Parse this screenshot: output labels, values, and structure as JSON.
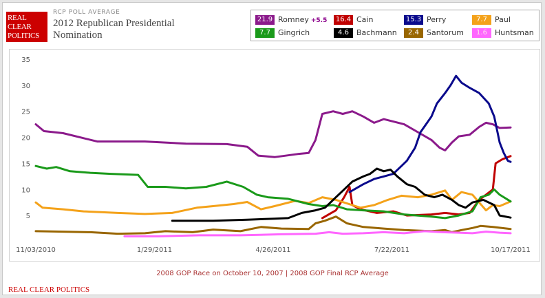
{
  "header": {
    "logo_lines": [
      "REAL",
      "CLEAR",
      "POLITICS"
    ],
    "label": "RCP POLL AVERAGE",
    "title": "2012 Republican Presidential Nomination"
  },
  "footnote": "2008 GOP Race on October 10, 2007 | 2008 GOP Final RCP Average",
  "footer": "REAL CLEAR POLITICS",
  "legend": [
    {
      "name": "Romney",
      "value": "21.9",
      "change": "+5.5",
      "color": "#8b1a8b"
    },
    {
      "name": "Cain",
      "value": "16.4",
      "change": "",
      "color": "#c00000"
    },
    {
      "name": "Perry",
      "value": "15.3",
      "change": "",
      "color": "#0a0a8c"
    },
    {
      "name": "Paul",
      "value": "7.7",
      "change": "",
      "color": "#f4a21a"
    },
    {
      "name": "Gingrich",
      "value": "7.7",
      "change": "",
      "color": "#1a9a1a"
    },
    {
      "name": "Bachmann",
      "value": "4.6",
      "change": "",
      "color": "#000000"
    },
    {
      "name": "Santorum",
      "value": "2.4",
      "change": "",
      "color": "#996600"
    },
    {
      "name": "Huntsman",
      "value": "1.6",
      "change": "",
      "color": "#ff66ff"
    }
  ],
  "chart_data": {
    "type": "line",
    "title": "2012 Republican Presidential Nomination",
    "xlabel": "",
    "ylabel": "",
    "x_tick_labels": [
      "11/03/2010",
      "1/29/2011",
      "4/26/2011",
      "7/22/2011",
      "10/17/2011"
    ],
    "x_domain_days": [
      0,
      348
    ],
    "ylim": [
      0,
      35
    ],
    "y_ticks": [
      5,
      10,
      15,
      20,
      25,
      30,
      35
    ],
    "grid": false,
    "series": [
      {
        "name": "Romney",
        "color": "#8b1a8b",
        "points": [
          [
            0,
            22.5
          ],
          [
            6,
            21.2
          ],
          [
            20,
            20.8
          ],
          [
            45,
            19.2
          ],
          [
            80,
            19.2
          ],
          [
            110,
            18.8
          ],
          [
            140,
            18.7
          ],
          [
            155,
            18.2
          ],
          [
            163,
            16.5
          ],
          [
            175,
            16.2
          ],
          [
            192,
            16.8
          ],
          [
            200,
            17.0
          ],
          [
            205,
            19.5
          ],
          [
            210,
            24.5
          ],
          [
            218,
            25.0
          ],
          [
            225,
            24.5
          ],
          [
            232,
            25.0
          ],
          [
            240,
            24.0
          ],
          [
            248,
            22.8
          ],
          [
            255,
            23.5
          ],
          [
            270,
            22.5
          ],
          [
            280,
            21.0
          ],
          [
            290,
            19.5
          ],
          [
            296,
            18.0
          ],
          [
            300,
            17.5
          ],
          [
            305,
            19.0
          ],
          [
            310,
            20.2
          ],
          [
            318,
            20.5
          ],
          [
            325,
            22.0
          ],
          [
            330,
            22.8
          ],
          [
            335,
            22.5
          ],
          [
            340,
            21.8
          ],
          [
            348,
            21.9
          ]
        ]
      },
      {
        "name": "Cain",
        "color": "#c00000",
        "points": [
          [
            210,
            4.5
          ],
          [
            220,
            6.0
          ],
          [
            226,
            8.5
          ],
          [
            230,
            10.5
          ],
          [
            232,
            7.0
          ],
          [
            238,
            6.2
          ],
          [
            250,
            5.5
          ],
          [
            262,
            5.8
          ],
          [
            272,
            5.0
          ],
          [
            290,
            5.2
          ],
          [
            300,
            5.5
          ],
          [
            310,
            5.2
          ],
          [
            318,
            5.5
          ],
          [
            325,
            8.0
          ],
          [
            330,
            9.0
          ],
          [
            335,
            10.0
          ],
          [
            337,
            15.0
          ],
          [
            342,
            15.8
          ],
          [
            348,
            16.4
          ]
        ]
      },
      {
        "name": "Perry",
        "color": "#0a0a8c",
        "points": [
          [
            230,
            9.5
          ],
          [
            240,
            11.0
          ],
          [
            248,
            12.0
          ],
          [
            255,
            12.5
          ],
          [
            262,
            13.0
          ],
          [
            268,
            14.5
          ],
          [
            272,
            15.5
          ],
          [
            278,
            18.0
          ],
          [
            282,
            21.0
          ],
          [
            286,
            22.5
          ],
          [
            290,
            24.0
          ],
          [
            294,
            26.5
          ],
          [
            300,
            28.5
          ],
          [
            304,
            30.0
          ],
          [
            308,
            31.8
          ],
          [
            312,
            30.5
          ],
          [
            318,
            29.5
          ],
          [
            325,
            28.5
          ],
          [
            332,
            26.5
          ],
          [
            336,
            24.0
          ],
          [
            340,
            19.0
          ],
          [
            343,
            17.0
          ],
          [
            346,
            15.5
          ],
          [
            348,
            15.3
          ]
        ]
      },
      {
        "name": "Paul",
        "color": "#f4a21a",
        "points": [
          [
            0,
            7.5
          ],
          [
            5,
            6.5
          ],
          [
            20,
            6.2
          ],
          [
            35,
            5.8
          ],
          [
            60,
            5.5
          ],
          [
            80,
            5.3
          ],
          [
            100,
            5.5
          ],
          [
            118,
            6.5
          ],
          [
            130,
            6.8
          ],
          [
            145,
            7.2
          ],
          [
            155,
            7.6
          ],
          [
            165,
            6.2
          ],
          [
            175,
            6.8
          ],
          [
            190,
            7.8
          ],
          [
            200,
            7.4
          ],
          [
            210,
            8.5
          ],
          [
            220,
            8.0
          ],
          [
            232,
            7.0
          ],
          [
            238,
            6.5
          ],
          [
            248,
            7.0
          ],
          [
            258,
            8.0
          ],
          [
            268,
            8.8
          ],
          [
            280,
            8.5
          ],
          [
            290,
            9.0
          ],
          [
            300,
            9.8
          ],
          [
            305,
            8.0
          ],
          [
            312,
            9.5
          ],
          [
            320,
            9.0
          ],
          [
            325,
            7.5
          ],
          [
            330,
            6.0
          ],
          [
            335,
            7.0
          ],
          [
            340,
            6.8
          ],
          [
            348,
            7.7
          ]
        ]
      },
      {
        "name": "Gingrich",
        "color": "#1a9a1a",
        "points": [
          [
            0,
            14.5
          ],
          [
            8,
            14.0
          ],
          [
            15,
            14.3
          ],
          [
            25,
            13.5
          ],
          [
            40,
            13.2
          ],
          [
            55,
            13.0
          ],
          [
            75,
            12.8
          ],
          [
            82,
            10.5
          ],
          [
            95,
            10.5
          ],
          [
            110,
            10.2
          ],
          [
            125,
            10.5
          ],
          [
            140,
            11.5
          ],
          [
            152,
            10.5
          ],
          [
            162,
            9.0
          ],
          [
            170,
            8.5
          ],
          [
            185,
            8.2
          ],
          [
            200,
            7.2
          ],
          [
            210,
            6.8
          ],
          [
            218,
            7.0
          ],
          [
            228,
            6.2
          ],
          [
            240,
            6.0
          ],
          [
            255,
            5.8
          ],
          [
            270,
            5.2
          ],
          [
            290,
            4.8
          ],
          [
            300,
            4.5
          ],
          [
            310,
            5.0
          ],
          [
            320,
            5.8
          ],
          [
            326,
            8.5
          ],
          [
            332,
            9.0
          ],
          [
            336,
            10.0
          ],
          [
            340,
            9.0
          ],
          [
            348,
            7.7
          ]
        ]
      },
      {
        "name": "Bachmann",
        "color": "#000000",
        "points": [
          [
            100,
            4.0
          ],
          [
            130,
            4.0
          ],
          [
            155,
            4.2
          ],
          [
            175,
            4.4
          ],
          [
            185,
            4.5
          ],
          [
            195,
            5.5
          ],
          [
            205,
            6.0
          ],
          [
            212,
            6.5
          ],
          [
            220,
            8.5
          ],
          [
            226,
            10.0
          ],
          [
            232,
            11.5
          ],
          [
            240,
            12.5
          ],
          [
            245,
            13.0
          ],
          [
            250,
            14.0
          ],
          [
            255,
            13.5
          ],
          [
            260,
            13.8
          ],
          [
            265,
            12.5
          ],
          [
            272,
            11.0
          ],
          [
            278,
            10.5
          ],
          [
            285,
            9.0
          ],
          [
            292,
            8.5
          ],
          [
            298,
            9.0
          ],
          [
            305,
            8.0
          ],
          [
            310,
            7.0
          ],
          [
            315,
            6.5
          ],
          [
            320,
            7.5
          ],
          [
            328,
            8.0
          ],
          [
            336,
            7.0
          ],
          [
            340,
            5.0
          ],
          [
            348,
            4.6
          ]
        ]
      },
      {
        "name": "Santorum",
        "color": "#996600",
        "points": [
          [
            0,
            2.0
          ],
          [
            20,
            1.9
          ],
          [
            40,
            1.8
          ],
          [
            60,
            1.5
          ],
          [
            80,
            1.6
          ],
          [
            95,
            2.0
          ],
          [
            115,
            1.8
          ],
          [
            130,
            2.3
          ],
          [
            150,
            2.0
          ],
          [
            165,
            2.8
          ],
          [
            180,
            2.5
          ],
          [
            200,
            2.4
          ],
          [
            205,
            3.5
          ],
          [
            212,
            4.0
          ],
          [
            220,
            4.8
          ],
          [
            228,
            3.5
          ],
          [
            240,
            2.8
          ],
          [
            255,
            2.5
          ],
          [
            270,
            2.2
          ],
          [
            290,
            2.0
          ],
          [
            300,
            2.2
          ],
          [
            305,
            1.8
          ],
          [
            312,
            2.2
          ],
          [
            320,
            2.6
          ],
          [
            326,
            3.0
          ],
          [
            335,
            2.8
          ],
          [
            348,
            2.4
          ]
        ]
      },
      {
        "name": "Huntsman",
        "color": "#ff66ff",
        "points": [
          [
            65,
            1.0
          ],
          [
            90,
            1.0
          ],
          [
            120,
            1.2
          ],
          [
            150,
            1.2
          ],
          [
            180,
            1.4
          ],
          [
            205,
            1.5
          ],
          [
            215,
            1.8
          ],
          [
            225,
            1.5
          ],
          [
            240,
            1.6
          ],
          [
            255,
            1.8
          ],
          [
            270,
            1.6
          ],
          [
            285,
            2.0
          ],
          [
            298,
            1.8
          ],
          [
            310,
            1.7
          ],
          [
            320,
            1.6
          ],
          [
            330,
            1.9
          ],
          [
            340,
            1.7
          ],
          [
            348,
            1.6
          ]
        ]
      }
    ]
  }
}
